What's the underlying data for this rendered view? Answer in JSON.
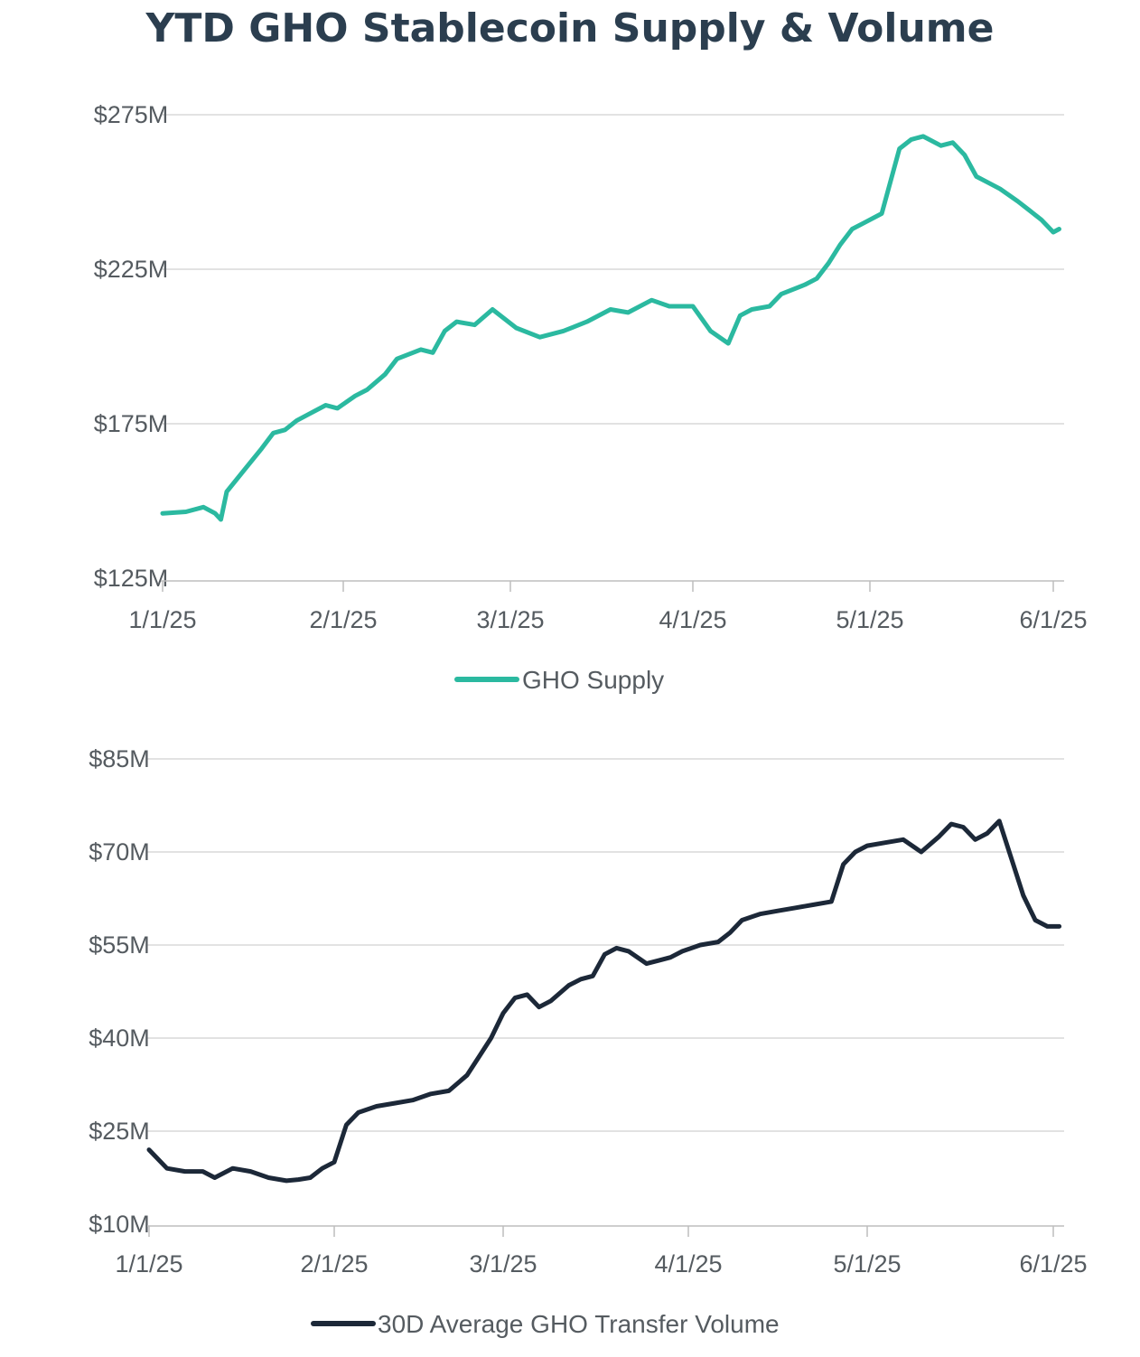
{
  "title": "YTD GHO Stablecoin Supply & Volume",
  "chart_data": [
    {
      "type": "line",
      "title": "",
      "xlabel": "",
      "ylabel": "",
      "x_tick_labels": [
        "1/1/25",
        "2/1/25",
        "3/1/25",
        "4/1/25",
        "5/1/25",
        "6/1/25"
      ],
      "y_tick_labels": [
        "$275M",
        "$225M",
        "$175M",
        "$125M"
      ],
      "ylim": [
        125,
        275
      ],
      "y_unit": "$M",
      "grid": true,
      "legend_position": "bottom-center",
      "series": [
        {
          "name": "GHO Supply",
          "color": "#2bb9a0",
          "x": [
            "2025-01-01",
            "2025-01-05",
            "2025-01-08",
            "2025-01-10",
            "2025-01-11",
            "2025-01-12",
            "2025-01-15",
            "2025-01-18",
            "2025-01-20",
            "2025-01-22",
            "2025-01-24",
            "2025-01-26",
            "2025-01-29",
            "2025-01-31",
            "2025-02-03",
            "2025-02-05",
            "2025-02-08",
            "2025-02-10",
            "2025-02-14",
            "2025-02-16",
            "2025-02-18",
            "2025-02-20",
            "2025-02-23",
            "2025-02-26",
            "2025-03-02",
            "2025-03-06",
            "2025-03-10",
            "2025-03-14",
            "2025-03-18",
            "2025-03-21",
            "2025-03-25",
            "2025-03-28",
            "2025-04-01",
            "2025-04-04",
            "2025-04-07",
            "2025-04-09",
            "2025-04-11",
            "2025-04-14",
            "2025-04-16",
            "2025-04-20",
            "2025-04-22",
            "2025-04-24",
            "2025-04-26",
            "2025-04-28",
            "2025-04-30",
            "2025-05-03",
            "2025-05-06",
            "2025-05-08",
            "2025-05-10",
            "2025-05-13",
            "2025-05-15",
            "2025-05-17",
            "2025-05-19",
            "2025-05-21",
            "2025-05-23",
            "2025-05-26",
            "2025-05-28",
            "2025-05-30",
            "2025-06-01",
            "2025-06-02"
          ],
          "values": [
            146,
            146.5,
            148,
            146,
            144,
            153,
            160,
            167,
            172,
            173,
            176,
            178,
            181,
            180,
            184,
            186,
            191,
            196,
            199,
            198,
            205,
            208,
            207,
            212,
            206,
            203,
            205,
            208,
            212,
            211,
            215,
            213,
            213,
            205,
            201,
            210,
            212,
            213,
            217,
            220,
            222,
            227,
            233,
            238,
            240,
            243,
            264,
            267,
            268,
            265,
            266,
            262,
            255,
            253,
            251,
            247,
            244,
            241,
            237,
            238
          ]
        }
      ]
    },
    {
      "type": "line",
      "title": "",
      "xlabel": "",
      "ylabel": "",
      "x_tick_labels": [
        "1/1/25",
        "2/1/25",
        "3/1/25",
        "4/1/25",
        "5/1/25",
        "6/1/25"
      ],
      "y_tick_labels": [
        "$85M",
        "$70M",
        "$55M",
        "$40M",
        "$25M",
        "$10M"
      ],
      "ylim": [
        10,
        85
      ],
      "y_unit": "$M",
      "grid": true,
      "legend_position": "bottom-center",
      "series": [
        {
          "name": "30D Average GHO Transfer Volume",
          "color": "#1c2838",
          "x": [
            "2025-01-01",
            "2025-01-02",
            "2025-01-04",
            "2025-01-07",
            "2025-01-10",
            "2025-01-12",
            "2025-01-15",
            "2025-01-18",
            "2025-01-21",
            "2025-01-24",
            "2025-01-26",
            "2025-01-28",
            "2025-01-30",
            "2025-02-01",
            "2025-02-03",
            "2025-02-05",
            "2025-02-08",
            "2025-02-11",
            "2025-02-14",
            "2025-02-17",
            "2025-02-20",
            "2025-02-23",
            "2025-02-25",
            "2025-02-27",
            "2025-03-01",
            "2025-03-03",
            "2025-03-05",
            "2025-03-07",
            "2025-03-09",
            "2025-03-12",
            "2025-03-14",
            "2025-03-16",
            "2025-03-18",
            "2025-03-20",
            "2025-03-22",
            "2025-03-25",
            "2025-03-27",
            "2025-03-29",
            "2025-03-31",
            "2025-04-03",
            "2025-04-06",
            "2025-04-08",
            "2025-04-10",
            "2025-04-13",
            "2025-04-16",
            "2025-04-19",
            "2025-04-22",
            "2025-04-25",
            "2025-04-27",
            "2025-04-29",
            "2025-05-01",
            "2025-05-04",
            "2025-05-07",
            "2025-05-10",
            "2025-05-13",
            "2025-05-15",
            "2025-05-17",
            "2025-05-19",
            "2025-05-21",
            "2025-05-23",
            "2025-05-25",
            "2025-05-27",
            "2025-05-29",
            "2025-05-31",
            "2025-06-01",
            "2025-06-02"
          ],
          "values": [
            22,
            21,
            19,
            18.5,
            18.5,
            17.5,
            19,
            18.5,
            17.5,
            17,
            17.2,
            17.5,
            19,
            20,
            26,
            28,
            29,
            29.5,
            30,
            31,
            31.5,
            34,
            37,
            40,
            44,
            46.5,
            47,
            45,
            46,
            48.5,
            49.5,
            50,
            53.5,
            54.5,
            54,
            52,
            52.5,
            53,
            54,
            55,
            55.5,
            57,
            59,
            60,
            60.5,
            61,
            61.5,
            62,
            68,
            70,
            71,
            71.5,
            72,
            70,
            72.5,
            74.5,
            74,
            72,
            73,
            75,
            69,
            63,
            59,
            58,
            58,
            58
          ]
        }
      ]
    }
  ]
}
